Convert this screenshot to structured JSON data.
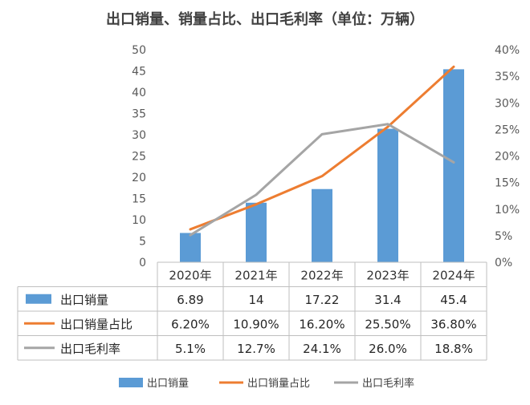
{
  "chart_data": {
    "type": "bar+line",
    "title": "出口销量、销量占比、出口毛利率（单位：万辆）",
    "categories": [
      "2020年",
      "2021年",
      "2022年",
      "2023年",
      "2024年"
    ],
    "y_left": {
      "min": 0,
      "max": 50,
      "step": 5,
      "ticks": [
        "0",
        "5",
        "10",
        "15",
        "20",
        "25",
        "30",
        "35",
        "40",
        "45",
        "50"
      ]
    },
    "y_right": {
      "min": 0,
      "max": 40,
      "step": 5,
      "ticks": [
        "0%",
        "5%",
        "10%",
        "15%",
        "20%",
        "25%",
        "30%",
        "35%",
        "40%"
      ]
    },
    "series": [
      {
        "name": "出口销量",
        "kind": "bar",
        "axis": "left",
        "color": "#5b9bd5",
        "values": [
          6.89,
          14,
          17.22,
          31.4,
          45.4
        ],
        "labels": [
          "6.89",
          "14",
          "17.22",
          "31.4",
          "45.4"
        ]
      },
      {
        "name": "出口销量占比",
        "kind": "line",
        "axis": "right",
        "color": "#ed7d31",
        "values": [
          6.2,
          10.9,
          16.2,
          25.5,
          36.8
        ],
        "labels": [
          "6.20%",
          "10.90%",
          "16.20%",
          "25.50%",
          "36.80%"
        ]
      },
      {
        "name": "出口毛利率",
        "kind": "line",
        "axis": "right",
        "color": "#a5a5a5",
        "values": [
          5.1,
          12.7,
          24.1,
          26.0,
          18.8
        ],
        "labels": [
          "5.1%",
          "12.7%",
          "24.1%",
          "26.0%",
          "18.8%"
        ]
      }
    ],
    "grid": false,
    "legend_position": "bottom",
    "data_table": true
  }
}
